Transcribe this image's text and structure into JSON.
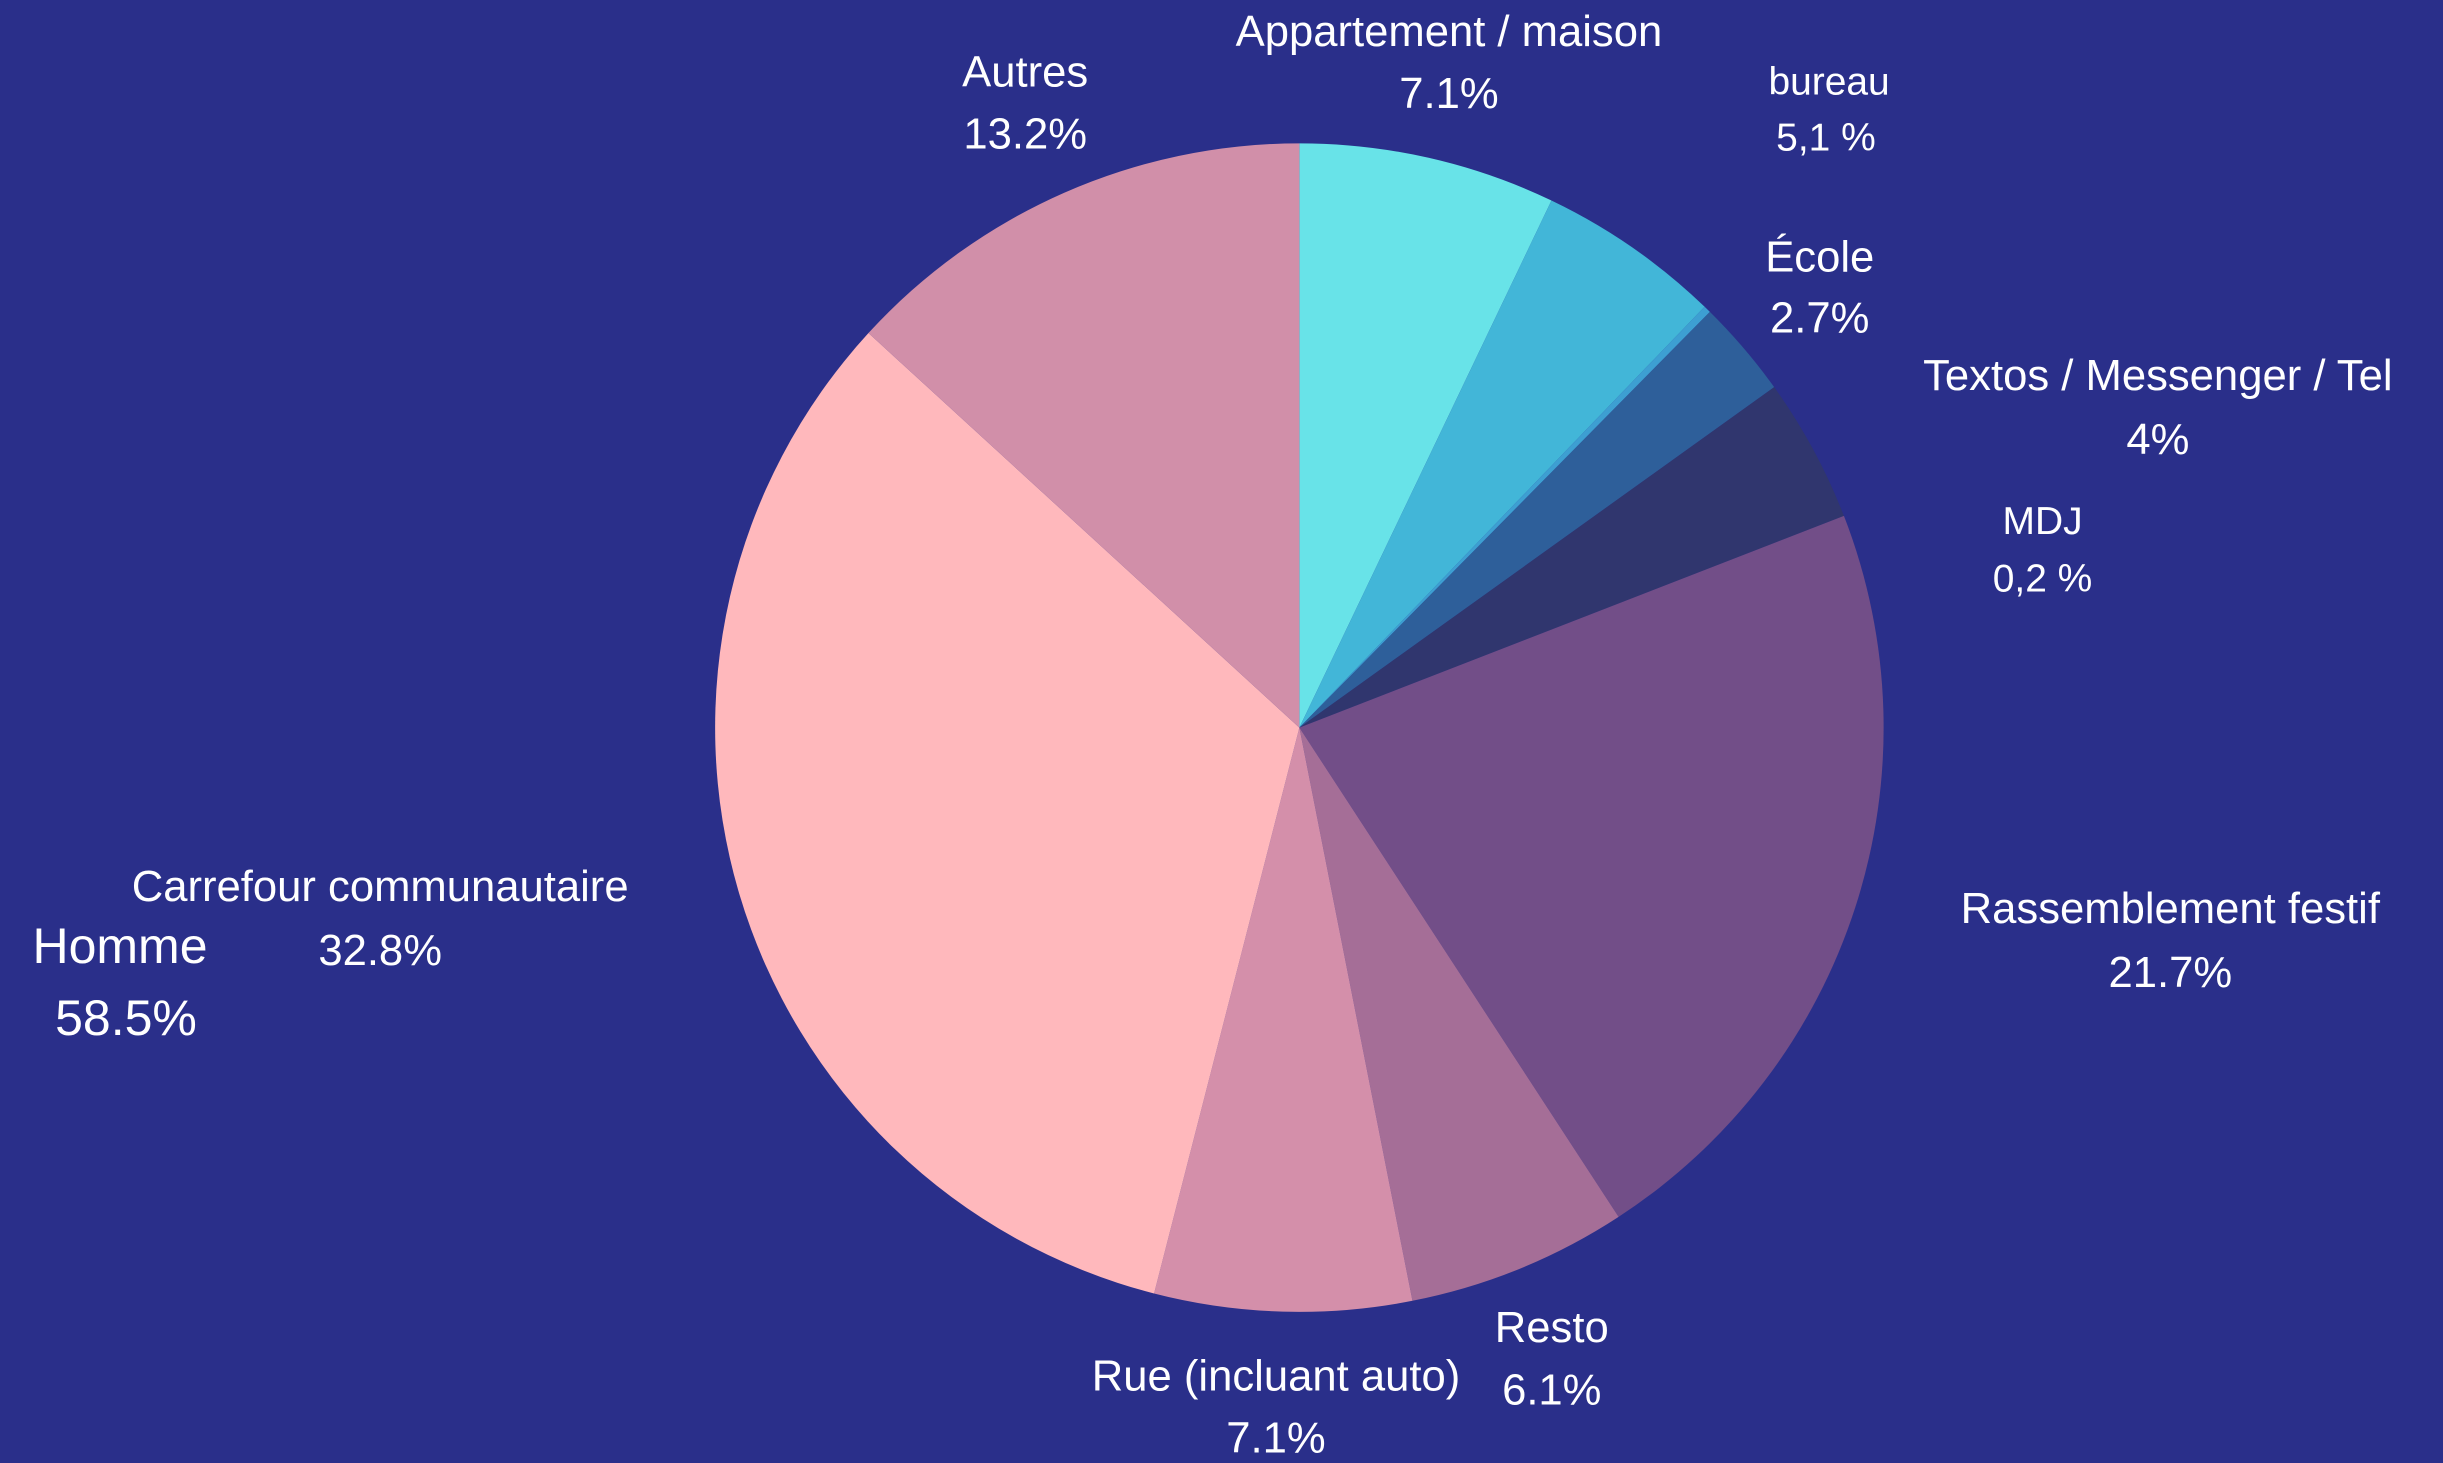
{
  "chart_data": {
    "type": "pie",
    "categories": [
      "Appartement / maison",
      "bureau",
      "MDJ",
      "École",
      "Textos / Messenger / Tel",
      "Rassemblement festif",
      "Resto",
      "Rue (incluant auto)",
      "Carrefour communautaire",
      "Autres"
    ],
    "values": [
      7.1,
      5.1,
      0.2,
      2.7,
      4,
      21.7,
      6.1,
      7.1,
      32.8,
      13.2
    ],
    "value_labels": [
      "7.1%",
      "5,1 %",
      "0,2 %",
      "2.7%",
      "4%",
      "21.7%",
      "6.1%",
      "7.1%",
      "32.8%",
      "13.2%"
    ],
    "colors": [
      "#68e3e8",
      "#42b6d8",
      "#3d9fd2",
      "#2e5f9a",
      "#30366e",
      "#724e88",
      "#a56e97",
      "#d48faa",
      "#ffb8bc",
      "#d18fa9"
    ],
    "annotation": {
      "text": "Homme",
      "label": "58.5%"
    }
  }
}
